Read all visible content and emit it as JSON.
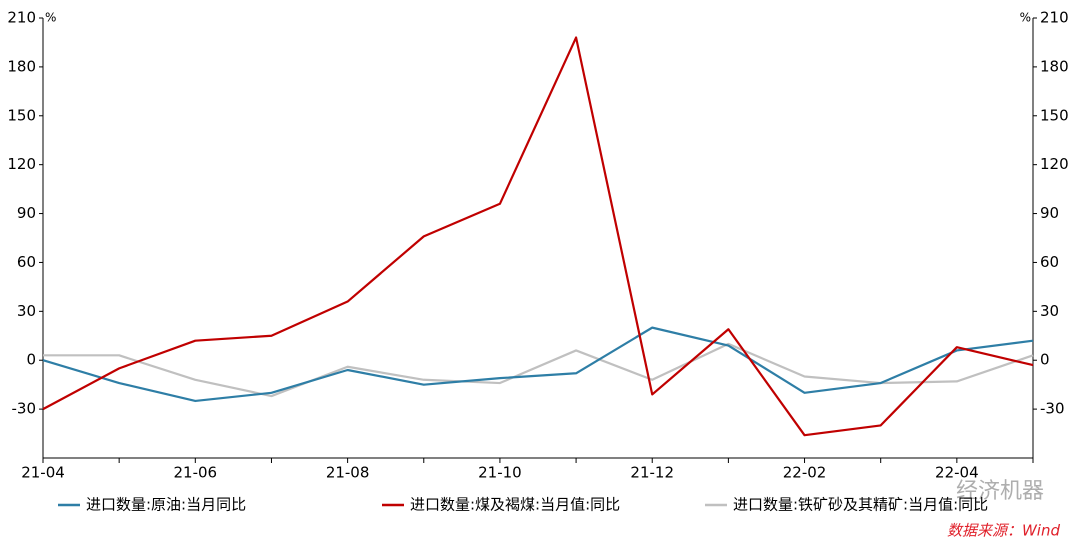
{
  "chart_data": {
    "type": "line",
    "unit_left": "%",
    "unit_right": "%",
    "categories": [
      "21-04",
      null,
      "21-06",
      null,
      "21-08",
      null,
      "21-10",
      null,
      "21-12",
      null,
      "22-02",
      null,
      "22-04",
      null
    ],
    "series": [
      {
        "name": "进口数量:原油:当月同比",
        "color": "#2e7ea6",
        "values": [
          0,
          -14,
          -25,
          -20,
          -6,
          -15,
          -11,
          -8,
          20,
          9,
          -20,
          -14,
          6,
          12
        ]
      },
      {
        "name": "进口数量:煤及褐煤:当月值:同比",
        "color": "#c00000",
        "values": [
          -30,
          -5,
          12,
          15,
          36,
          76,
          96,
          198,
          -21,
          19,
          -46,
          -40,
          8,
          -3
        ]
      },
      {
        "name": "进口数量:铁矿砂及其精矿:当月值:同比",
        "color": "#c0c0c0",
        "values": [
          3,
          3,
          -12,
          -22,
          -4,
          -12,
          -14,
          6,
          -12,
          10,
          -10,
          -14,
          -13,
          3
        ]
      }
    ],
    "ylim": [
      -60,
      210
    ],
    "yticks": [
      -30,
      0,
      30,
      60,
      90,
      120,
      150,
      180,
      210
    ],
    "y2lim": [
      -60,
      210
    ],
    "y2ticks": [
      -30,
      0,
      30,
      60,
      90,
      120,
      150,
      180,
      210
    ],
    "grid": false,
    "source": "数据来源：Wind",
    "watermark": "经济机器"
  }
}
